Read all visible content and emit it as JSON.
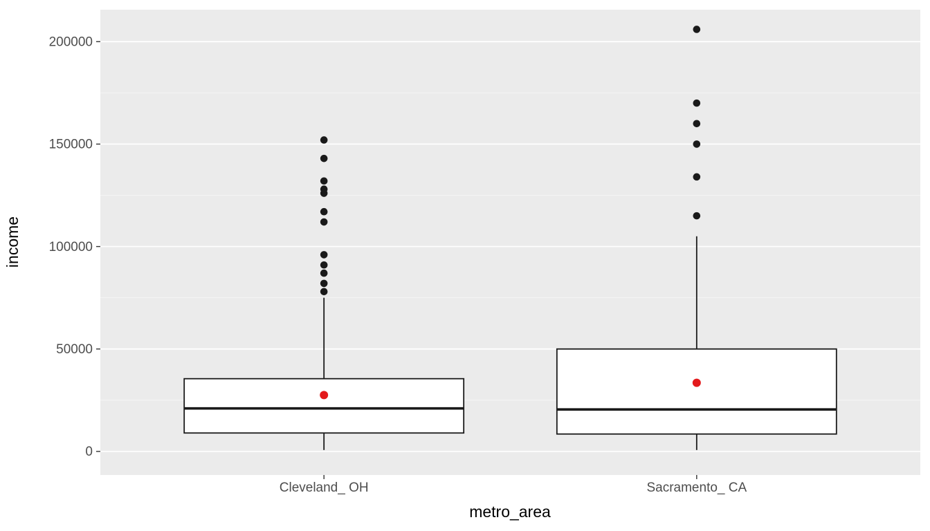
{
  "chart_data": {
    "type": "boxplot",
    "title": "",
    "xlabel": "metro_area",
    "ylabel": "income",
    "legend": "none",
    "grid": "on",
    "y_ticks": [
      0,
      50000,
      100000,
      150000,
      200000
    ],
    "y_minor_ticks": [
      25000,
      75000,
      125000,
      175000
    ],
    "ylim": [
      -11500,
      215600
    ],
    "categories": [
      "Cleveland_ OH",
      "Sacramento_ CA"
    ],
    "series": [
      {
        "name": "Cleveland_ OH",
        "q1": 9000,
        "median": 21000,
        "q3": 35500,
        "whisker_low": 700,
        "whisker_high": 75000,
        "mean": 27500,
        "outliers": [
          78000,
          82000,
          87000,
          91000,
          96000,
          112000,
          117000,
          126000,
          128000,
          132000,
          143000,
          152000
        ]
      },
      {
        "name": "Sacramento_ CA",
        "q1": 8500,
        "median": 20500,
        "q3": 50000,
        "whisker_low": 700,
        "whisker_high": 105000,
        "mean": 33500,
        "outliers": [
          115000,
          134000,
          150000,
          160000,
          170000,
          206000
        ]
      }
    ],
    "colors": {
      "panel_bg": "#ebebeb",
      "grid_major": "#ffffff",
      "grid_minor": "#f5f5f5",
      "box_fill": "#ffffff",
      "box_stroke": "#1a1a1a",
      "outlier": "#1a1a1a",
      "mean_point": "#e31a1c",
      "tick": "#333333",
      "axis_text": "#4d4d4d",
      "axis_title": "#000000"
    }
  }
}
